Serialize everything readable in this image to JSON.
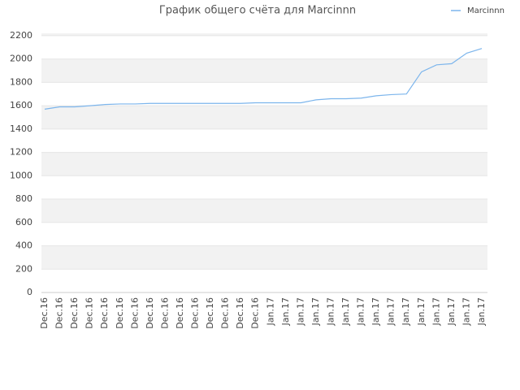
{
  "chart_data": {
    "type": "line",
    "title": "График общего счёта для Marcinnn",
    "categories": [
      "Dec.16",
      "Dec.16",
      "Dec.16",
      "Dec.16",
      "Dec.16",
      "Dec.16",
      "Dec.16",
      "Dec.16",
      "Dec.16",
      "Dec.16",
      "Dec.16",
      "Dec.16",
      "Dec.16",
      "Dec.16",
      "Dec.16",
      "Jan.17",
      "Jan.17",
      "Jan.17",
      "Jan.17",
      "Jan.17",
      "Jan.17",
      "Jan.17",
      "Jan.17",
      "Jan.17",
      "Jan.17",
      "Jan.17",
      "Jan.17",
      "Jan.17",
      "Jan.17",
      "Jan.17"
    ],
    "series": [
      {
        "name": "Marcinnn",
        "color": "#7cb5ec",
        "values": [
          1570,
          1590,
          1590,
          1600,
          1610,
          1615,
          1615,
          1620,
          1620,
          1620,
          1620,
          1620,
          1620,
          1620,
          1625,
          1625,
          1625,
          1625,
          1650,
          1660,
          1660,
          1665,
          1685,
          1695,
          1700,
          1890,
          1950,
          1960,
          2050,
          2090
        ]
      }
    ],
    "ylim": [
      0,
      2220
    ],
    "yticks": [
      0,
      200,
      400,
      600,
      800,
      1000,
      1200,
      1400,
      1600,
      1800,
      2000,
      2200
    ],
    "grid": true,
    "legend": "top-right"
  }
}
